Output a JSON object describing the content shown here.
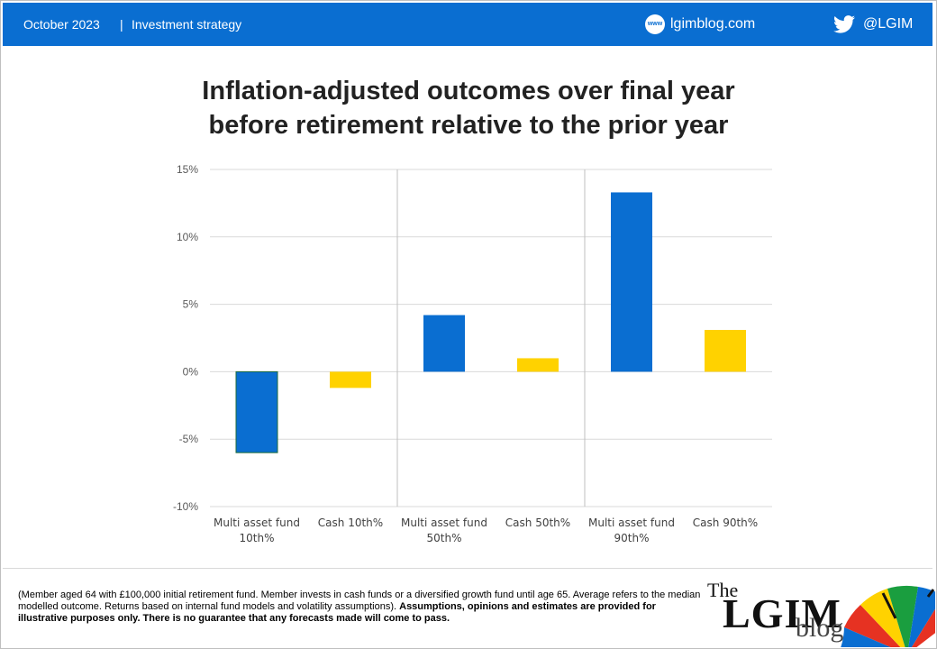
{
  "header": {
    "date": "October 2023",
    "separator": "|",
    "section": "Investment strategy",
    "web_icon_text": "www",
    "site": "lgimblog.com",
    "handle": "@LGIM"
  },
  "chart_data": {
    "type": "bar",
    "title_lines": [
      "Inflation-adjusted outcomes over final year",
      "before retirement relative to the prior year"
    ],
    "categories": [
      [
        "Multi asset fund",
        "10th%"
      ],
      [
        "Cash 10th%"
      ],
      [
        "Multi asset fund",
        "50th%"
      ],
      [
        "Cash 50th%"
      ],
      [
        "Multi asset fund",
        "90th%"
      ],
      [
        "Cash 90th%"
      ]
    ],
    "values": [
      -6.0,
      -1.2,
      4.2,
      1.0,
      13.3,
      3.1
    ],
    "colors": [
      "#0a6ed1",
      "#ffd200",
      "#0a6ed1",
      "#ffd200",
      "#0a6ed1",
      "#ffd200"
    ],
    "ylim": [
      -10,
      15
    ],
    "yticks": [
      -10,
      -5,
      0,
      5,
      10,
      15
    ],
    "ytick_labels": [
      "-10%",
      "-5%",
      "0%",
      "5%",
      "10%",
      "15%"
    ],
    "group_dividers_after": [
      1,
      3
    ],
    "grid": true
  },
  "footnote": {
    "line1": "(Member aged 64 with £100,000 initial retirement fund. Member invests in cash funds or a diversified growth fund until age 65. Average refers to the median modelled outcome. Returns based on internal fund models and volatility assumptions).",
    "bold": "Assumptions, opinions and estimates are provided for illustrative purposes only. There is no guarantee that any forecasts made will come to pass."
  },
  "logo": {
    "the": "The",
    "lgim": "LGIM",
    "blog": "blog"
  }
}
